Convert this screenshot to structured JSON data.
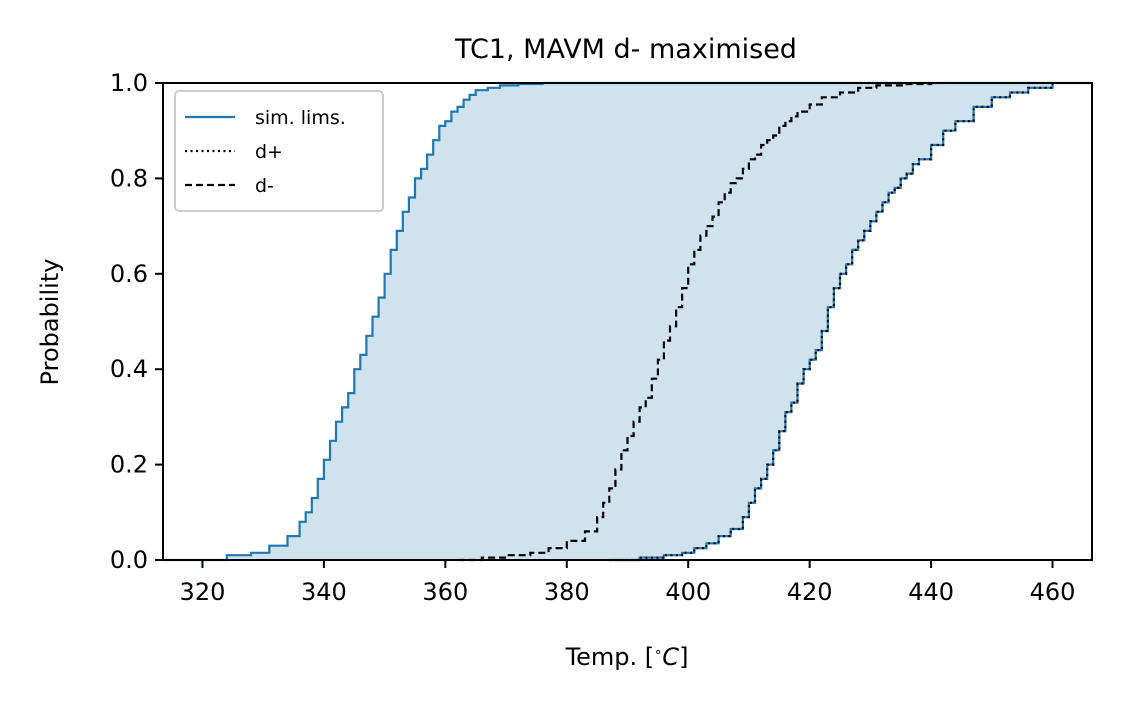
{
  "chart_data": {
    "type": "line",
    "title": "TC1, MAVM d- maximised",
    "xlabel": "Temp. [°C]",
    "ylabel": "Probability",
    "xlim": [
      313.5,
      466.5
    ],
    "ylim": [
      0,
      1
    ],
    "x_ticks": [
      320,
      340,
      360,
      380,
      400,
      420,
      440,
      460
    ],
    "y_ticks": [
      0.0,
      0.2,
      0.4,
      0.6,
      0.8,
      1.0
    ],
    "x_tick_labels": [
      "320",
      "340",
      "360",
      "380",
      "400",
      "420",
      "440",
      "460"
    ],
    "y_tick_labels": [
      "0.0",
      "0.2",
      "0.4",
      "0.6",
      "0.8",
      "1.0"
    ],
    "grid": false,
    "legend_position": "upper-left",
    "legend": [
      "sim. lims.",
      "d+",
      "d-"
    ],
    "colors": {
      "sim_lims": "#1f77b4",
      "fill": "#d1e2ef",
      "d_plus": "#000000",
      "d_minus": "#000000"
    },
    "fill_between": {
      "lower": "sim. lims. (right)",
      "upper": "sim. lims. (left)"
    },
    "series": [
      {
        "name": "sim. lims.",
        "style": "solid",
        "x": [
          320,
          324,
          328,
          331,
          334,
          336,
          337,
          338,
          339,
          340,
          341,
          342,
          343,
          344,
          345,
          346,
          347,
          348,
          349,
          350,
          351,
          352,
          353,
          354,
          355,
          356,
          357,
          358,
          359,
          360,
          361,
          362,
          363,
          364,
          365,
          367,
          369,
          372,
          376
        ],
        "y": [
          0.0,
          0.01,
          0.015,
          0.03,
          0.05,
          0.08,
          0.1,
          0.13,
          0.17,
          0.21,
          0.25,
          0.29,
          0.32,
          0.35,
          0.4,
          0.43,
          0.47,
          0.51,
          0.55,
          0.6,
          0.65,
          0.69,
          0.73,
          0.76,
          0.8,
          0.82,
          0.85,
          0.88,
          0.91,
          0.92,
          0.94,
          0.95,
          0.965,
          0.975,
          0.985,
          0.99,
          0.995,
          0.998,
          1.0
        ]
      },
      {
        "name": "sim. lims.",
        "style": "solid",
        "x": [
          387,
          392,
          396,
          399,
          401,
          403,
          405,
          407,
          409,
          410,
          411,
          412,
          413,
          414,
          415,
          416,
          417,
          418,
          419,
          420,
          421,
          422,
          423,
          424,
          425,
          426,
          427,
          428,
          429,
          430,
          431,
          432,
          433,
          434,
          435,
          436,
          437,
          438,
          440,
          442,
          444,
          447,
          450,
          453,
          456,
          460
        ],
        "y": [
          0.0,
          0.005,
          0.01,
          0.015,
          0.025,
          0.035,
          0.05,
          0.065,
          0.09,
          0.12,
          0.15,
          0.17,
          0.2,
          0.23,
          0.27,
          0.31,
          0.33,
          0.37,
          0.4,
          0.42,
          0.44,
          0.48,
          0.53,
          0.57,
          0.6,
          0.62,
          0.65,
          0.67,
          0.69,
          0.71,
          0.73,
          0.75,
          0.77,
          0.78,
          0.8,
          0.81,
          0.83,
          0.84,
          0.87,
          0.9,
          0.92,
          0.95,
          0.97,
          0.98,
          0.99,
          1.0
        ]
      },
      {
        "name": "d+",
        "style": "dotted",
        "x": [
          387,
          392,
          396,
          399,
          401,
          403,
          405,
          407,
          409,
          410,
          411,
          412,
          413,
          414,
          415,
          416,
          417,
          418,
          419,
          420,
          421,
          422,
          423,
          424,
          425,
          426,
          427,
          428,
          429,
          430,
          431,
          432,
          433,
          434,
          435,
          436,
          437,
          438,
          440,
          442,
          444,
          447,
          450,
          453,
          456,
          460
        ],
        "y": [
          0.0,
          0.005,
          0.01,
          0.015,
          0.025,
          0.035,
          0.05,
          0.065,
          0.09,
          0.12,
          0.15,
          0.17,
          0.2,
          0.23,
          0.27,
          0.31,
          0.33,
          0.37,
          0.4,
          0.42,
          0.44,
          0.48,
          0.53,
          0.57,
          0.6,
          0.62,
          0.65,
          0.67,
          0.69,
          0.71,
          0.73,
          0.75,
          0.77,
          0.78,
          0.8,
          0.81,
          0.83,
          0.84,
          0.87,
          0.9,
          0.92,
          0.95,
          0.97,
          0.98,
          0.99,
          1.0
        ]
      },
      {
        "name": "d-",
        "style": "dashed",
        "x": [
          362,
          366,
          370,
          374,
          377,
          380,
          383,
          385,
          386,
          387,
          388,
          389,
          390,
          391,
          392,
          393,
          394,
          395,
          396,
          397,
          398,
          399,
          400,
          401,
          402,
          403,
          404,
          405,
          406,
          407,
          408,
          409,
          410,
          411,
          412,
          413,
          414,
          415,
          416,
          417,
          418,
          420,
          422,
          425,
          428,
          431,
          436,
          440
        ],
        "y": [
          0.0,
          0.005,
          0.01,
          0.015,
          0.025,
          0.04,
          0.06,
          0.09,
          0.12,
          0.15,
          0.19,
          0.23,
          0.26,
          0.29,
          0.32,
          0.34,
          0.38,
          0.42,
          0.46,
          0.49,
          0.53,
          0.57,
          0.62,
          0.65,
          0.68,
          0.7,
          0.72,
          0.75,
          0.77,
          0.79,
          0.8,
          0.82,
          0.84,
          0.85,
          0.87,
          0.88,
          0.89,
          0.91,
          0.92,
          0.93,
          0.94,
          0.955,
          0.97,
          0.98,
          0.99,
          0.995,
          0.998,
          1.0
        ]
      }
    ]
  }
}
